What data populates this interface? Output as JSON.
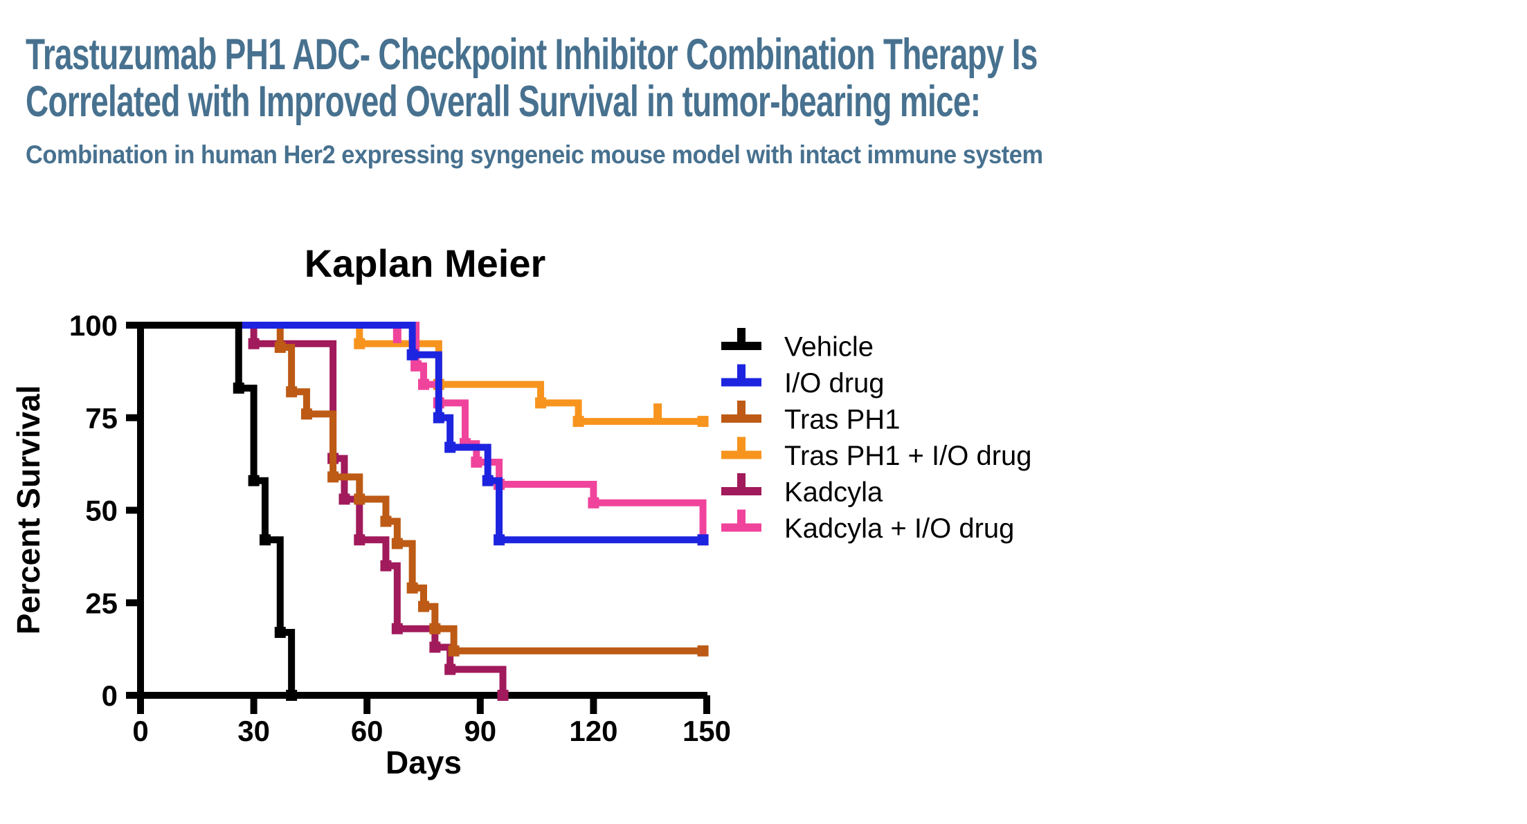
{
  "slide": {
    "title_line1": "Trastuzumab PH1 ADC- Checkpoint Inhibitor Combination Therapy Is",
    "title_line2": "Correlated with Improved Overall Survival in tumor-bearing mice:",
    "subtitle": "Combination in human Her2 expressing syngeneic mouse model with intact immune system",
    "title_color": "#47718F"
  },
  "chart_data": {
    "type": "line",
    "subtype": "kaplan-meier-step",
    "title": "Kaplan Meier",
    "xlabel": "Days",
    "ylabel": "Percent Survival",
    "xlim": [
      0,
      150
    ],
    "ylim": [
      0,
      100
    ],
    "xticks": [
      0,
      30,
      60,
      90,
      120,
      150
    ],
    "yticks": [
      0,
      25,
      50,
      75,
      100
    ],
    "grid": false,
    "legend_position": "right",
    "axis_color": "#000000",
    "series": [
      {
        "name": "Vehicle",
        "color": "#000000",
        "points": [
          [
            0,
            100
          ],
          [
            26,
            100
          ],
          [
            26,
            83
          ],
          [
            30,
            83
          ],
          [
            30,
            58
          ],
          [
            33,
            58
          ],
          [
            33,
            42
          ],
          [
            37,
            42
          ],
          [
            37,
            17
          ],
          [
            40,
            17
          ],
          [
            40,
            0
          ]
        ],
        "end_marker": false,
        "censors": []
      },
      {
        "name": "I/O drug",
        "color": "#1D24DF",
        "points": [
          [
            0,
            100
          ],
          [
            72,
            100
          ],
          [
            72,
            92
          ],
          [
            79,
            92
          ],
          [
            79,
            75
          ],
          [
            82,
            75
          ],
          [
            82,
            67
          ],
          [
            92,
            67
          ],
          [
            92,
            58
          ],
          [
            95,
            58
          ],
          [
            95,
            42
          ],
          [
            149,
            42
          ]
        ],
        "end_marker": true,
        "censors": []
      },
      {
        "name": "Tras PH1",
        "color": "#BD5A15",
        "points": [
          [
            0,
            100
          ],
          [
            37,
            100
          ],
          [
            37,
            94
          ],
          [
            40,
            94
          ],
          [
            40,
            82
          ],
          [
            44,
            82
          ],
          [
            44,
            76
          ],
          [
            51,
            76
          ],
          [
            51,
            59
          ],
          [
            58,
            59
          ],
          [
            58,
            53
          ],
          [
            65,
            53
          ],
          [
            65,
            47
          ],
          [
            68,
            47
          ],
          [
            68,
            41
          ],
          [
            72,
            41
          ],
          [
            72,
            29
          ],
          [
            75,
            29
          ],
          [
            75,
            24
          ],
          [
            78,
            24
          ],
          [
            78,
            18
          ],
          [
            83,
            18
          ],
          [
            83,
            12
          ],
          [
            149,
            12
          ]
        ],
        "end_marker": true,
        "censors": []
      },
      {
        "name": "Tras PH1 + I/O drug",
        "color": "#F7941E",
        "points": [
          [
            0,
            100
          ],
          [
            58,
            100
          ],
          [
            58,
            95
          ],
          [
            79,
            95
          ],
          [
            79,
            84
          ],
          [
            106,
            84
          ],
          [
            106,
            79
          ],
          [
            116,
            79
          ],
          [
            116,
            74
          ],
          [
            149,
            74
          ]
        ],
        "end_marker": true,
        "censors": [
          [
            137,
            74,
            "up"
          ]
        ]
      },
      {
        "name": "Kadcyla",
        "color": "#A11A5B",
        "points": [
          [
            0,
            100
          ],
          [
            30,
            100
          ],
          [
            30,
            95
          ],
          [
            51,
            95
          ],
          [
            51,
            64
          ],
          [
            54,
            64
          ],
          [
            54,
            53
          ],
          [
            58,
            53
          ],
          [
            58,
            42
          ],
          [
            65,
            42
          ],
          [
            65,
            35
          ],
          [
            68,
            35
          ],
          [
            68,
            18
          ],
          [
            78,
            18
          ],
          [
            78,
            13
          ],
          [
            82,
            13
          ],
          [
            82,
            7
          ],
          [
            96,
            7
          ],
          [
            96,
            0
          ]
        ],
        "end_marker": true,
        "censors": []
      },
      {
        "name": "Kadcyla + I/O drug",
        "color": "#F0449C",
        "points": [
          [
            0,
            100
          ],
          [
            73,
            100
          ],
          [
            73,
            89
          ],
          [
            75,
            89
          ],
          [
            75,
            84
          ],
          [
            79,
            84
          ],
          [
            79,
            79
          ],
          [
            86,
            79
          ],
          [
            86,
            68
          ],
          [
            89,
            68
          ],
          [
            89,
            63
          ],
          [
            95,
            63
          ],
          [
            95,
            57
          ],
          [
            120,
            57
          ],
          [
            120,
            52
          ],
          [
            149,
            52
          ],
          [
            149,
            42
          ]
        ],
        "end_marker": true,
        "censors": [
          [
            68,
            100,
            "down"
          ]
        ]
      }
    ],
    "draw_order": [
      "Kadcyla",
      "Tras PH1",
      "Tras PH1 + I/O drug",
      "Kadcyla + I/O drug",
      "I/O drug",
      "Vehicle"
    ]
  }
}
